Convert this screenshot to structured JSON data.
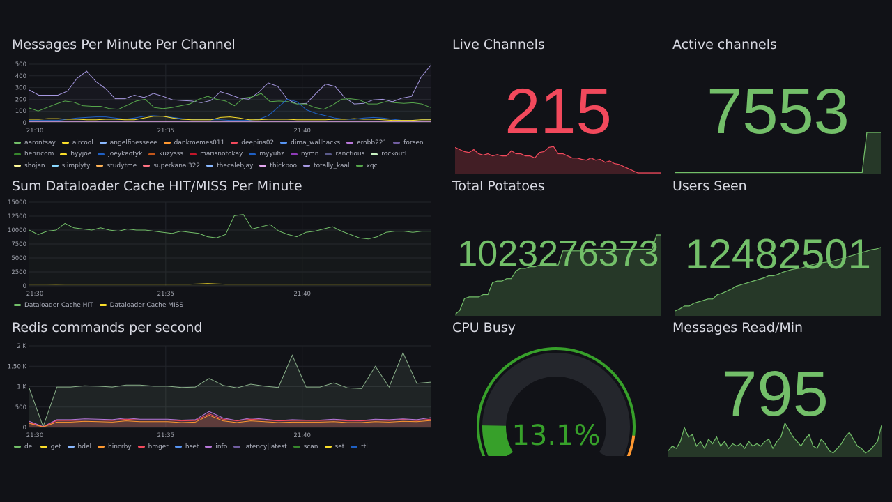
{
  "panels": {
    "messages": {
      "title": "Messages Per Minute Per Channel"
    },
    "dataloader": {
      "title": "Sum Dataloader Cache HIT/MISS Per Minute"
    },
    "redis": {
      "title": "Redis commands per second"
    },
    "live": {
      "title": "Live Channels",
      "value": "215",
      "color": "#F2495C",
      "spark": [
        60,
        55,
        50,
        48,
        55,
        45,
        42,
        45,
        40,
        43,
        40,
        40,
        52,
        45,
        45,
        40,
        40,
        35,
        48,
        50,
        60,
        62,
        45,
        45,
        40,
        35,
        35,
        32,
        30,
        35,
        30,
        32,
        25,
        28,
        22,
        20,
        15,
        10,
        5,
        0,
        0,
        0,
        0,
        0,
        0
      ]
    },
    "active": {
      "title": "Active channels",
      "value": "7553",
      "color": "#73BF69",
      "spark": [
        1,
        1,
        1,
        1,
        1,
        1,
        1,
        1,
        1,
        1,
        1,
        1,
        1,
        1,
        1,
        1,
        1,
        1,
        1,
        1,
        1,
        1,
        1,
        1,
        1,
        1,
        1,
        1,
        1,
        1,
        1,
        1,
        1,
        1,
        1,
        1,
        1,
        1,
        1,
        1,
        1,
        95,
        95,
        95,
        95
      ]
    },
    "potatoes": {
      "title": "Total Potatoes",
      "value": "1023276373",
      "color": "#73BF69",
      "spark": [
        0,
        5,
        20,
        22,
        22,
        22,
        25,
        25,
        40,
        42,
        42,
        45,
        45,
        55,
        58,
        58,
        60,
        60,
        62,
        62,
        62,
        62,
        62,
        80,
        80,
        80,
        80,
        80,
        82,
        82,
        82,
        82,
        82,
        82,
        82,
        82,
        82,
        82,
        82,
        82,
        82,
        82,
        82,
        100,
        100
      ]
    },
    "users": {
      "title": "Users Seen",
      "value": "12482501",
      "color": "#73BF69",
      "spark": [
        5,
        8,
        12,
        12,
        16,
        18,
        20,
        22,
        22,
        28,
        30,
        33,
        36,
        40,
        42,
        44,
        46,
        48,
        50,
        52,
        55,
        55,
        57,
        60,
        62,
        64,
        65,
        66,
        68,
        70,
        72,
        73,
        74,
        75,
        76,
        78,
        80,
        82,
        84,
        86,
        88,
        90,
        92,
        93,
        95
      ]
    },
    "cpu": {
      "title": "CPU Busy",
      "value": "13.1%",
      "percent": 13.1,
      "color": "#37A02A"
    },
    "msgread": {
      "title": "Messages Read/Min",
      "value": "795",
      "color": "#73BF69",
      "spark": [
        10,
        20,
        15,
        30,
        60,
        40,
        45,
        20,
        30,
        15,
        35,
        25,
        40,
        20,
        30,
        15,
        25,
        20,
        25,
        15,
        30,
        20,
        25,
        20,
        30,
        35,
        15,
        30,
        40,
        70,
        55,
        40,
        30,
        20,
        35,
        45,
        20,
        15,
        35,
        25,
        10,
        5,
        15,
        25,
        40,
        50,
        35,
        20,
        15,
        5,
        10,
        20,
        30,
        65
      ]
    }
  },
  "chart_data": [
    {
      "type": "line",
      "id": "messages",
      "x_ticks": [
        "21:30",
        "21:35",
        "21:40"
      ],
      "y_ticks": [
        "0",
        "100",
        "200",
        "300",
        "400",
        "500"
      ],
      "ylim": [
        0,
        500
      ],
      "legend": [
        [
          "aarontsay",
          "#73BF69"
        ],
        [
          "aircool",
          "#FADE2A"
        ],
        [
          "angelfinesseee",
          "#8AB8FF"
        ],
        [
          "dankmemes011",
          "#FF9830"
        ],
        [
          "deepins02",
          "#F2495C"
        ],
        [
          "dima_wallhacks",
          "#5794F2"
        ],
        [
          "erobb221",
          "#B877D9"
        ],
        [
          "forsen",
          "#705DA0"
        ],
        [
          "henricom",
          "#37872D"
        ],
        [
          "hyyjoe",
          "#FADE2A"
        ],
        [
          "joeykaotyk",
          "#1F60C4"
        ],
        [
          "kuzysss",
          "#C4571A"
        ],
        [
          "marisnotokay",
          "#C4162A"
        ],
        [
          "myyuhz",
          "#1F60C4"
        ],
        [
          "nymn",
          "#8F3BB8"
        ],
        [
          "ranctious",
          "#5a5a8a"
        ],
        [
          "rockoutl",
          "#C8F2C2"
        ],
        [
          "shojan",
          "#FFF899"
        ],
        [
          "siimplyty",
          "#8AD8FF"
        ],
        [
          "studytme",
          "#FFB357"
        ],
        [
          "superkanal322",
          "#FF7383"
        ],
        [
          "thecalebjay",
          "#8AB8FF"
        ],
        [
          "thickpoo",
          "#E5A8F0"
        ],
        [
          "totally_kaal",
          "#A698E0"
        ],
        [
          "xqc",
          "#56A64B"
        ]
      ],
      "series": [
        {
          "name": "forsen",
          "color": "#A698E0",
          "values": [
            280,
            235,
            235,
            235,
            270,
            380,
            440,
            350,
            290,
            205,
            205,
            235,
            215,
            250,
            225,
            195,
            190,
            185,
            170,
            190,
            265,
            240,
            210,
            200,
            260,
            340,
            310,
            200,
            160,
            165,
            250,
            330,
            310,
            215,
            160,
            165,
            195,
            200,
            180,
            210,
            225,
            390,
            490
          ]
        },
        {
          "name": "xqc",
          "color": "#56A64B",
          "values": [
            125,
            100,
            130,
            160,
            185,
            175,
            145,
            140,
            140,
            120,
            115,
            150,
            185,
            200,
            130,
            120,
            130,
            145,
            160,
            200,
            225,
            200,
            185,
            145,
            210,
            220,
            250,
            180,
            185,
            180,
            160,
            160,
            130,
            115,
            150,
            200,
            205,
            195,
            160,
            160,
            180,
            170,
            165,
            170,
            160,
            130
          ]
        },
        {
          "name": "myyuhz",
          "color": "#1F60C4",
          "values": [
            20,
            20,
            20,
            20,
            30,
            40,
            45,
            50,
            50,
            40,
            30,
            40,
            55,
            60,
            55,
            45,
            35,
            30,
            30,
            25,
            25,
            20,
            20,
            20,
            30,
            60,
            130,
            200,
            180,
            110,
            80,
            60,
            40,
            30,
            30,
            40,
            45,
            40,
            30,
            20,
            20,
            25,
            30
          ]
        },
        {
          "name": "aircool",
          "color": "#FADE2A",
          "values": [
            30,
            30,
            35,
            35,
            30,
            30,
            25,
            25,
            30,
            30,
            25,
            25,
            40,
            55,
            55,
            40,
            30,
            25,
            25,
            25,
            45,
            50,
            40,
            25,
            25,
            30,
            30,
            30,
            25,
            25,
            25,
            25,
            30,
            30,
            35,
            30,
            30,
            25,
            20,
            20,
            20,
            25,
            25
          ]
        },
        {
          "name": "totally_kaal",
          "color": "#E5A8F0",
          "values": [
            10,
            10,
            10,
            10,
            10,
            10,
            10,
            10,
            10,
            10,
            10,
            10,
            10,
            10,
            10,
            10,
            10,
            10,
            10,
            10,
            10,
            10,
            10,
            10,
            10,
            10,
            10,
            10,
            10,
            10,
            10,
            10,
            10,
            10,
            10,
            10,
            10,
            10,
            10,
            10,
            10,
            10,
            10
          ]
        }
      ]
    },
    {
      "type": "line",
      "id": "dataloader",
      "x_ticks": [
        "21:30",
        "21:35",
        "21:40"
      ],
      "y_ticks": [
        "0",
        "2500",
        "5000",
        "7500",
        "10000",
        "12500",
        "15000"
      ],
      "ylim": [
        0,
        15000
      ],
      "legend": [
        [
          "Dataloader Cache HIT",
          "#73BF69"
        ],
        [
          "Dataloader Cache MISS",
          "#FADE2A"
        ]
      ],
      "series": [
        {
          "name": "Dataloader Cache HIT",
          "color": "#73BF69",
          "values": [
            10000,
            9200,
            9800,
            10000,
            11200,
            10400,
            10200,
            10000,
            10400,
            10000,
            9800,
            10200,
            10000,
            10000,
            9800,
            9600,
            9400,
            9800,
            9600,
            9400,
            8800,
            8600,
            9200,
            12600,
            12800,
            10200,
            10600,
            11000,
            9800,
            9200,
            8800,
            9600,
            9800,
            10200,
            10600,
            9800,
            9200,
            8600,
            8400,
            8800,
            9600,
            9800,
            9800,
            9600,
            9800,
            9800
          ]
        },
        {
          "name": "Dataloader Cache MISS",
          "color": "#FADE2A",
          "values": [
            300,
            300,
            300,
            280,
            300,
            300,
            300,
            300,
            300,
            300,
            300,
            300,
            300,
            300,
            300,
            300,
            300,
            300,
            300,
            350,
            400,
            350,
            300,
            300,
            300,
            300,
            300,
            300,
            300,
            300,
            300,
            300,
            300,
            300,
            300,
            300,
            300,
            300,
            300,
            300,
            300,
            300,
            300,
            300,
            300,
            300
          ]
        }
      ]
    },
    {
      "type": "area",
      "id": "redis",
      "x_ticks": [
        "21:30",
        "21:35",
        "21:40"
      ],
      "y_ticks": [
        "0",
        "500",
        "1 K",
        "1.50 K",
        "2 K"
      ],
      "ylim": [
        0,
        2000
      ],
      "legend": [
        [
          "del",
          "#73BF69"
        ],
        [
          "get",
          "#FADE2A"
        ],
        [
          "hdel",
          "#8AB8FF"
        ],
        [
          "hincrby",
          "#FF9830"
        ],
        [
          "hmget",
          "#F2495C"
        ],
        [
          "hset",
          "#5794F2"
        ],
        [
          "info",
          "#B877D9"
        ],
        [
          "latency|latest",
          "#705DA0"
        ],
        [
          "scan",
          "#37872D"
        ],
        [
          "set",
          "#FADE2A"
        ],
        [
          "ttl",
          "#1F60C4"
        ]
      ],
      "series": [
        {
          "name": "ttl",
          "color": "#8ab08a",
          "values": [
            960,
            20,
            990,
            990,
            1020,
            1010,
            990,
            1040,
            1040,
            1010,
            1010,
            980,
            990,
            1200,
            1030,
            970,
            1060,
            1010,
            980,
            1770,
            990,
            990,
            1090,
            970,
            950,
            1500,
            990,
            1830,
            1080,
            1110
          ]
        },
        {
          "name": "info",
          "color": "#B877D9",
          "values": [
            150,
            20,
            190,
            190,
            210,
            200,
            190,
            230,
            200,
            200,
            200,
            180,
            190,
            390,
            230,
            170,
            230,
            200,
            170,
            190,
            180,
            180,
            200,
            180,
            170,
            200,
            190,
            210,
            190,
            240
          ]
        },
        {
          "name": "hmget",
          "color": "#F2495C",
          "values": [
            120,
            15,
            170,
            170,
            180,
            180,
            170,
            200,
            180,
            180,
            180,
            160,
            170,
            330,
            200,
            160,
            200,
            180,
            160,
            170,
            170,
            170,
            180,
            160,
            160,
            180,
            170,
            190,
            170,
            200
          ]
        },
        {
          "name": "hincrby",
          "color": "#FF9830",
          "values": [
            100,
            10,
            130,
            130,
            150,
            140,
            130,
            160,
            140,
            140,
            140,
            120,
            130,
            300,
            160,
            120,
            160,
            140,
            120,
            130,
            130,
            130,
            140,
            120,
            120,
            140,
            130,
            150,
            140,
            170
          ]
        }
      ]
    }
  ]
}
